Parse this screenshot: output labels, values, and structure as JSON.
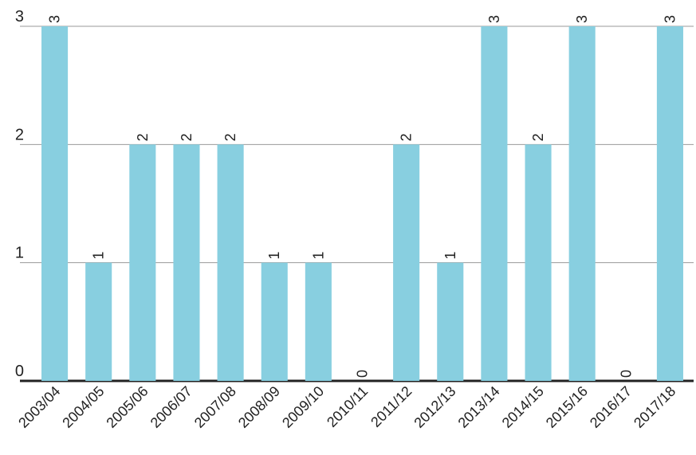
{
  "chart_data": {
    "type": "bar",
    "categories": [
      "2003/04",
      "2004/05",
      "2005/06",
      "2006/07",
      "2007/08",
      "2008/09",
      "2009/10",
      "2010/11",
      "2011/12",
      "2012/13",
      "2013/14",
      "2014/15",
      "2015/16",
      "2016/17",
      "2017/18"
    ],
    "values": [
      3,
      1,
      2,
      2,
      2,
      1,
      1,
      0,
      2,
      1,
      3,
      2,
      3,
      0,
      3
    ],
    "color": "#88cfe0",
    "ylim": [
      0,
      3
    ],
    "yticks": [
      0,
      1,
      2,
      3
    ],
    "grid": true
  }
}
